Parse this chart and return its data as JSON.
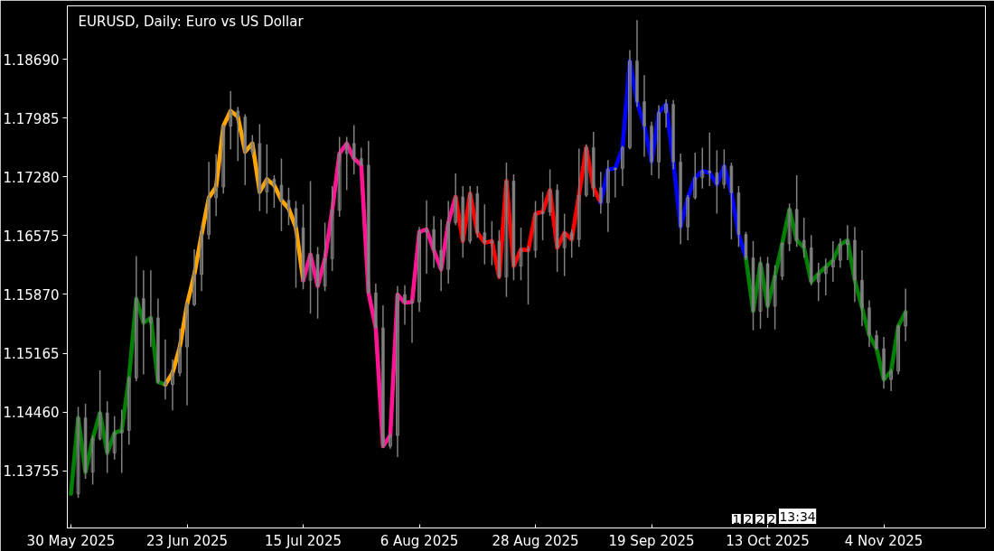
{
  "chart_data": {
    "type": "candlestick",
    "title": "EURUSD, Daily:  Euro vs US Dollar",
    "color": "#808080",
    "grid": false,
    "categories": [
      "30 May 2025",
      null,
      null,
      null,
      null,
      null,
      null,
      null,
      null,
      null,
      null,
      null,
      null,
      null,
      null,
      null,
      "23 Jun 2025",
      null,
      null,
      null,
      null,
      null,
      null,
      null,
      null,
      null,
      null,
      null,
      null,
      null,
      null,
      null,
      "15 Jul 2025",
      null,
      null,
      null,
      null,
      null,
      null,
      null,
      null,
      null,
      null,
      null,
      null,
      null,
      null,
      null,
      "6 Aug 2025",
      null,
      null,
      null,
      null,
      null,
      null,
      null,
      null,
      null,
      null,
      null,
      null,
      null,
      null,
      null,
      "28 Aug 2025",
      null,
      null,
      null,
      null,
      null,
      null,
      null,
      null,
      null,
      null,
      null,
      null,
      null,
      null,
      null,
      "19 Sep 2025",
      null,
      null,
      null,
      null,
      null,
      null,
      null,
      null,
      null,
      null,
      null,
      null,
      null,
      null,
      null,
      "13 Oct 2025",
      null,
      null,
      null,
      null,
      null,
      null,
      null,
      null,
      null,
      null,
      null,
      null,
      null,
      null,
      null,
      "4 Nov 2025",
      null,
      null,
      null
    ],
    "ylim": [
      1.1307,
      1.1933
    ],
    "yticks": [
      {
        "value": 1.13755,
        "label": "1.13755"
      },
      {
        "value": 1.1446,
        "label": "1.14460"
      },
      {
        "value": 1.15165,
        "label": "1.15165"
      },
      {
        "value": 1.1587,
        "label": "1.15870"
      },
      {
        "value": 1.16575,
        "label": "1.16575"
      },
      {
        "value": 1.1728,
        "label": "1.17280"
      },
      {
        "value": 1.17985,
        "label": "1.17985"
      },
      {
        "value": 1.1869,
        "label": "1.18690"
      }
    ],
    "ohlc": [
      null,
      [
        1.1348,
        1.1452,
        1.1343,
        1.1439
      ],
      [
        1.1439,
        1.1456,
        1.1366,
        1.1374
      ],
      [
        1.1374,
        1.1418,
        1.1359,
        1.1414
      ],
      [
        1.1414,
        1.1496,
        1.1412,
        1.1445
      ],
      [
        1.1445,
        1.1459,
        1.1373,
        1.1397
      ],
      [
        1.1397,
        1.1441,
        1.1389,
        1.1421
      ],
      [
        1.1421,
        1.1449,
        1.1373,
        1.1424
      ],
      [
        1.1424,
        1.1489,
        1.1407,
        1.1487
      ],
      [
        1.1487,
        1.1633,
        1.1483,
        1.1582
      ],
      [
        1.1582,
        1.1616,
        1.1491,
        1.1553
      ],
      [
        1.1553,
        1.1616,
        1.1524,
        1.1559
      ],
      [
        1.1559,
        1.1582,
        1.148,
        1.1482
      ],
      [
        1.1482,
        1.1533,
        1.1461,
        1.1479
      ],
      [
        1.1479,
        1.1509,
        1.1448,
        1.1493
      ],
      [
        1.1493,
        1.1546,
        1.1489,
        1.1524
      ],
      [
        1.1524,
        1.1578,
        1.1454,
        1.1575
      ],
      [
        1.1575,
        1.1641,
        1.1573,
        1.1611
      ],
      [
        1.1611,
        1.167,
        1.1591,
        1.1659
      ],
      [
        1.1659,
        1.1746,
        1.1653,
        1.1703
      ],
      [
        1.1703,
        1.1755,
        1.1681,
        1.1716
      ],
      [
        1.1716,
        1.179,
        1.1708,
        1.1789
      ],
      [
        1.1789,
        1.1831,
        1.1761,
        1.1807
      ],
      [
        1.1807,
        1.1812,
        1.1747,
        1.18
      ],
      [
        1.18,
        1.1803,
        1.1718,
        1.1758
      ],
      [
        1.1758,
        1.1778,
        1.1754,
        1.1768
      ],
      [
        1.1768,
        1.1791,
        1.1687,
        1.171
      ],
      [
        1.171,
        1.1767,
        1.1684,
        1.1725
      ],
      [
        1.1725,
        1.173,
        1.1691,
        1.1718
      ],
      [
        1.1718,
        1.175,
        1.1663,
        1.17
      ],
      [
        1.17,
        1.1715,
        1.167,
        1.169
      ],
      [
        1.169,
        1.1699,
        1.1595,
        1.1667
      ],
      [
        1.1667,
        1.1695,
        1.1593,
        1.1604
      ],
      [
        1.1604,
        1.1723,
        1.1564,
        1.1635
      ],
      [
        1.1635,
        1.1644,
        1.1558,
        1.1597
      ],
      [
        1.1597,
        1.1673,
        1.1591,
        1.163
      ],
      [
        1.163,
        1.1717,
        1.1615,
        1.1688
      ],
      [
        1.1688,
        1.1776,
        1.168,
        1.1756
      ],
      [
        1.1756,
        1.1776,
        1.1712,
        1.1768
      ],
      [
        1.1768,
        1.179,
        1.1731,
        1.175
      ],
      [
        1.175,
        1.1763,
        1.1741,
        1.1742
      ],
      [
        1.1742,
        1.1771,
        1.1587,
        1.1589
      ],
      [
        1.1589,
        1.16,
        1.1546,
        1.1547
      ],
      [
        1.1547,
        1.1574,
        1.1403,
        1.1405
      ],
      [
        1.1405,
        1.1421,
        1.1402,
        1.1418
      ],
      [
        1.1418,
        1.1597,
        1.1392,
        1.1587
      ],
      [
        1.1587,
        1.1598,
        1.1551,
        1.1577
      ],
      [
        1.1577,
        1.1582,
        1.1529,
        1.1578
      ],
      [
        1.1578,
        1.1668,
        1.1566,
        1.1662
      ],
      [
        1.1662,
        1.17,
        1.1612,
        1.1665
      ],
      [
        1.1665,
        1.1681,
        1.1619,
        1.164
      ],
      [
        1.164,
        1.1677,
        1.1591,
        1.1617
      ],
      [
        1.1617,
        1.1699,
        1.16,
        1.1673
      ],
      [
        1.1673,
        1.1732,
        1.167,
        1.1704
      ],
      [
        1.1704,
        1.1717,
        1.1631,
        1.1651
      ],
      [
        1.1651,
        1.1717,
        1.1648,
        1.1708
      ],
      [
        1.1708,
        1.1717,
        1.1655,
        1.1661
      ],
      [
        1.1661,
        1.1695,
        1.1623,
        1.1649
      ],
      [
        1.1649,
        1.1675,
        1.1622,
        1.1651
      ],
      [
        1.1651,
        1.1664,
        1.1606,
        1.1608
      ],
      [
        1.1608,
        1.1745,
        1.1584,
        1.1723
      ],
      [
        1.1723,
        1.1731,
        1.1604,
        1.1621
      ],
      [
        1.1621,
        1.1667,
        1.1604,
        1.1641
      ],
      [
        1.1641,
        1.1645,
        1.1575,
        1.164
      ],
      [
        1.164,
        1.1699,
        1.1631,
        1.1684
      ],
      [
        1.1684,
        1.171,
        1.1652,
        1.1686
      ],
      [
        1.1686,
        1.1737,
        1.1681,
        1.1712
      ],
      [
        1.1712,
        1.1719,
        1.1614,
        1.1643
      ],
      [
        1.1643,
        1.1684,
        1.1609,
        1.1661
      ],
      [
        1.1661,
        1.1665,
        1.1631,
        1.1653
      ],
      [
        1.1653,
        1.1762,
        1.1644,
        1.1706
      ],
      [
        1.1706,
        1.1767,
        1.1704,
        1.1763
      ],
      [
        1.1763,
        1.1782,
        1.1704,
        1.1715
      ],
      [
        1.1715,
        1.1734,
        1.1684,
        1.1697
      ],
      [
        1.1697,
        1.1748,
        1.1662,
        1.1737
      ],
      [
        1.1737,
        1.1739,
        1.1703,
        1.1738
      ],
      [
        1.1738,
        1.1765,
        1.1717,
        1.1763
      ],
      [
        1.1763,
        1.188,
        1.1761,
        1.1867
      ],
      [
        1.1867,
        1.1916,
        1.1812,
        1.1818
      ],
      [
        1.1818,
        1.185,
        1.1752,
        1.1789
      ],
      [
        1.1789,
        1.1794,
        1.173,
        1.1746
      ],
      [
        1.1746,
        1.1814,
        1.1726,
        1.1805
      ],
      [
        1.1805,
        1.1821,
        1.1787,
        1.1815
      ],
      [
        1.1815,
        1.182,
        1.1737,
        1.1746
      ],
      [
        1.1746,
        1.1756,
        1.1647,
        1.1668
      ],
      [
        1.1668,
        1.1706,
        1.1652,
        1.1703
      ],
      [
        1.1703,
        1.1757,
        1.1701,
        1.1727
      ],
      [
        1.1727,
        1.1763,
        1.1714,
        1.1735
      ],
      [
        1.1735,
        1.1781,
        1.1717,
        1.1733
      ],
      [
        1.1733,
        1.176,
        1.1684,
        1.1719
      ],
      [
        1.1719,
        1.1761,
        1.1714,
        1.1741
      ],
      [
        1.1741,
        1.1745,
        1.1653,
        1.1709
      ],
      [
        1.1709,
        1.1717,
        1.1644,
        1.1659
      ],
      [
        1.1659,
        1.1662,
        1.1628,
        1.1631
      ],
      [
        1.1631,
        1.1651,
        1.1544,
        1.1567
      ],
      [
        1.1567,
        1.1632,
        1.1546,
        1.1624
      ],
      [
        1.1624,
        1.1632,
        1.1559,
        1.1573
      ],
      [
        1.1573,
        1.1622,
        1.1545,
        1.1609
      ],
      [
        1.1609,
        1.165,
        1.1604,
        1.1648
      ],
      [
        1.1648,
        1.1696,
        1.1639,
        1.1689
      ],
      [
        1.1689,
        1.173,
        1.1644,
        1.1652
      ],
      [
        1.1652,
        1.1679,
        1.1631,
        1.1643
      ],
      [
        1.1643,
        1.1658,
        1.1598,
        1.1602
      ],
      [
        1.1602,
        1.1625,
        1.1579,
        1.1612
      ],
      [
        1.1612,
        1.163,
        1.1586,
        1.162
      ],
      [
        1.162,
        1.1651,
        1.1602,
        1.1628
      ],
      [
        1.1628,
        1.1654,
        1.1619,
        1.1647
      ],
      [
        1.1647,
        1.167,
        1.1628,
        1.1652
      ],
      [
        1.1652,
        1.1668,
        1.1578,
        1.1604
      ],
      [
        1.1604,
        1.164,
        1.1549,
        1.1571
      ],
      [
        1.1571,
        1.158,
        1.1524,
        1.1538
      ],
      [
        1.1538,
        1.1544,
        1.152,
        1.1522
      ],
      [
        1.1522,
        1.1536,
        1.1474,
        1.1485
      ],
      [
        1.1485,
        1.1498,
        1.1471,
        1.1495
      ],
      [
        1.1495,
        1.1551,
        1.1491,
        1.1549
      ],
      [
        1.1549,
        1.1594,
        1.1531,
        1.1566
      ]
    ],
    "series": [
      {
        "type": "line",
        "color": "#008000",
        "values": [
          1.1348,
          1.1439,
          1.1374,
          1.1414,
          1.1445,
          1.1397,
          1.1421,
          1.1424,
          1.1487,
          1.1582,
          1.1553,
          1.1559,
          1.1482,
          1.1479,
          null,
          null,
          null,
          null,
          null,
          null,
          null,
          null,
          null,
          null,
          null,
          null,
          null,
          null,
          null,
          null,
          null,
          null,
          null,
          null,
          null,
          null,
          null,
          null,
          null,
          null,
          null,
          null,
          null,
          null,
          null,
          null,
          null,
          null,
          null,
          null,
          null,
          null,
          null,
          null,
          null,
          null,
          null,
          null,
          null,
          null,
          null,
          null,
          null,
          null,
          null,
          null,
          null,
          null,
          null,
          null,
          null,
          null,
          null,
          null,
          null,
          null,
          null,
          null,
          null,
          null,
          null,
          null,
          null,
          null,
          null,
          null,
          null,
          null,
          null,
          null,
          null,
          null,
          null,
          null,
          null,
          null,
          null,
          null,
          null,
          null,
          null,
          null,
          null,
          null,
          null,
          null,
          null,
          null,
          null,
          null,
          null,
          null,
          null,
          null,
          null,
          null
        ]
      },
      {
        "type": "line",
        "color": "#ffa500",
        "values": [
          null,
          null,
          null,
          null,
          null,
          null,
          null,
          null,
          null,
          null,
          null,
          null,
          null,
          1.1479,
          1.1493,
          1.1524,
          1.1575,
          1.1611,
          1.1659,
          1.1703,
          1.1716,
          1.1789,
          1.1807,
          1.18,
          1.1758,
          1.1768,
          1.171,
          1.1725,
          1.1718,
          1.17,
          1.169,
          1.1667,
          1.1604,
          null,
          null,
          null,
          null,
          null,
          null,
          null,
          null,
          null,
          null,
          null,
          null,
          null,
          null,
          null,
          null,
          null,
          null,
          null,
          null,
          null,
          null,
          null,
          null,
          null,
          null,
          null,
          null,
          null,
          null,
          null,
          null,
          null,
          null,
          null,
          null,
          null,
          null,
          null,
          null,
          null,
          null,
          null,
          null,
          null,
          null,
          null,
          null,
          null,
          null,
          null,
          null,
          null,
          null,
          null,
          null,
          null,
          null,
          null,
          null,
          null,
          null,
          null,
          null,
          null,
          null,
          null,
          null,
          null,
          null,
          null,
          null,
          null,
          null,
          null,
          null,
          null,
          null,
          null,
          null,
          null,
          null,
          null
        ]
      },
      {
        "type": "line",
        "color": "#ff1493",
        "values": [
          null,
          null,
          null,
          null,
          null,
          null,
          null,
          null,
          null,
          null,
          null,
          null,
          null,
          null,
          null,
          null,
          null,
          null,
          null,
          null,
          null,
          null,
          null,
          null,
          null,
          null,
          null,
          null,
          null,
          null,
          null,
          null,
          1.1604,
          1.1635,
          1.1597,
          1.163,
          1.1688,
          1.1756,
          1.1768,
          1.175,
          1.1742,
          1.1589,
          1.1547,
          1.1405,
          1.1418,
          1.1587,
          1.1577,
          1.1578,
          1.1662,
          1.1665,
          1.164,
          1.1617,
          1.1673,
          1.1704,
          null,
          null,
          null,
          null,
          null,
          null,
          null,
          null,
          null,
          null,
          null,
          null,
          null,
          null,
          null,
          null,
          null,
          null,
          null,
          null,
          null,
          null,
          null,
          null,
          null,
          null,
          null,
          null,
          null,
          null,
          null,
          null,
          null,
          null,
          null,
          null,
          null,
          null,
          null,
          null,
          null,
          null,
          null,
          null,
          null,
          null,
          null,
          null,
          null,
          null,
          null,
          null,
          null,
          null,
          null,
          null,
          null,
          null,
          null,
          null,
          null,
          null
        ]
      },
      {
        "type": "line",
        "color": "#ff0000",
        "values": [
          null,
          null,
          null,
          null,
          null,
          null,
          null,
          null,
          null,
          null,
          null,
          null,
          null,
          null,
          null,
          null,
          null,
          null,
          null,
          null,
          null,
          null,
          null,
          null,
          null,
          null,
          null,
          null,
          null,
          null,
          null,
          null,
          null,
          null,
          null,
          null,
          null,
          null,
          null,
          null,
          null,
          null,
          null,
          null,
          null,
          null,
          null,
          null,
          null,
          null,
          null,
          null,
          null,
          1.1704,
          1.1651,
          1.1708,
          1.1661,
          1.1649,
          1.1651,
          1.1608,
          1.1723,
          1.1621,
          1.1641,
          1.164,
          1.1684,
          1.1686,
          1.1712,
          1.1643,
          1.1661,
          1.1653,
          1.1706,
          1.1763,
          1.1715,
          1.1697,
          null,
          null,
          null,
          null,
          null,
          null,
          null,
          null,
          null,
          null,
          null,
          null,
          null,
          null,
          null,
          null,
          null,
          null,
          null,
          null,
          null,
          null,
          null,
          null,
          null,
          null,
          null,
          null,
          null,
          null,
          null,
          null,
          null,
          null,
          null,
          null,
          null,
          null,
          null,
          null,
          null,
          null
        ]
      },
      {
        "type": "line",
        "color": "#0000ff",
        "values": [
          null,
          null,
          null,
          null,
          null,
          null,
          null,
          null,
          null,
          null,
          null,
          null,
          null,
          null,
          null,
          null,
          null,
          null,
          null,
          null,
          null,
          null,
          null,
          null,
          null,
          null,
          null,
          null,
          null,
          null,
          null,
          null,
          null,
          null,
          null,
          null,
          null,
          null,
          null,
          null,
          null,
          null,
          null,
          null,
          null,
          null,
          null,
          null,
          null,
          null,
          null,
          null,
          null,
          null,
          null,
          null,
          null,
          null,
          null,
          null,
          null,
          null,
          null,
          null,
          null,
          null,
          null,
          null,
          null,
          null,
          null,
          null,
          null,
          1.1697,
          1.1737,
          1.1738,
          1.1763,
          1.1867,
          1.1818,
          1.1789,
          1.1746,
          1.1805,
          1.1815,
          1.1746,
          1.1668,
          1.1703,
          1.1727,
          1.1735,
          1.1733,
          1.1719,
          1.1741,
          1.1709,
          1.1659,
          1.1631,
          null,
          null,
          null,
          null,
          null,
          null,
          null,
          null,
          null,
          null,
          null,
          null,
          null,
          null,
          null,
          null,
          null,
          null,
          null,
          null,
          null,
          null
        ]
      },
      {
        "type": "line",
        "color": "#008000",
        "values": [
          null,
          null,
          null,
          null,
          null,
          null,
          null,
          null,
          null,
          null,
          null,
          null,
          null,
          null,
          null,
          null,
          null,
          null,
          null,
          null,
          null,
          null,
          null,
          null,
          null,
          null,
          null,
          null,
          null,
          null,
          null,
          null,
          null,
          null,
          null,
          null,
          null,
          null,
          null,
          null,
          null,
          null,
          null,
          null,
          null,
          null,
          null,
          null,
          null,
          null,
          null,
          null,
          null,
          null,
          null,
          null,
          null,
          null,
          null,
          null,
          null,
          null,
          null,
          null,
          null,
          null,
          null,
          null,
          null,
          null,
          null,
          null,
          null,
          null,
          null,
          null,
          null,
          null,
          null,
          null,
          null,
          null,
          null,
          null,
          null,
          null,
          null,
          null,
          null,
          null,
          null,
          null,
          null,
          1.1631,
          1.1567,
          1.1624,
          1.1573,
          1.1609,
          1.1648,
          1.1689,
          1.1652,
          1.1643,
          1.1602,
          1.1612,
          1.162,
          1.1628,
          1.1647,
          1.1652,
          1.1604,
          1.1571,
          1.1538,
          1.1522,
          1.1485,
          1.1495,
          1.1549,
          1.1566
        ]
      }
    ],
    "annotations": [
      "1",
      "2",
      "2",
      "2",
      "13:34"
    ]
  }
}
